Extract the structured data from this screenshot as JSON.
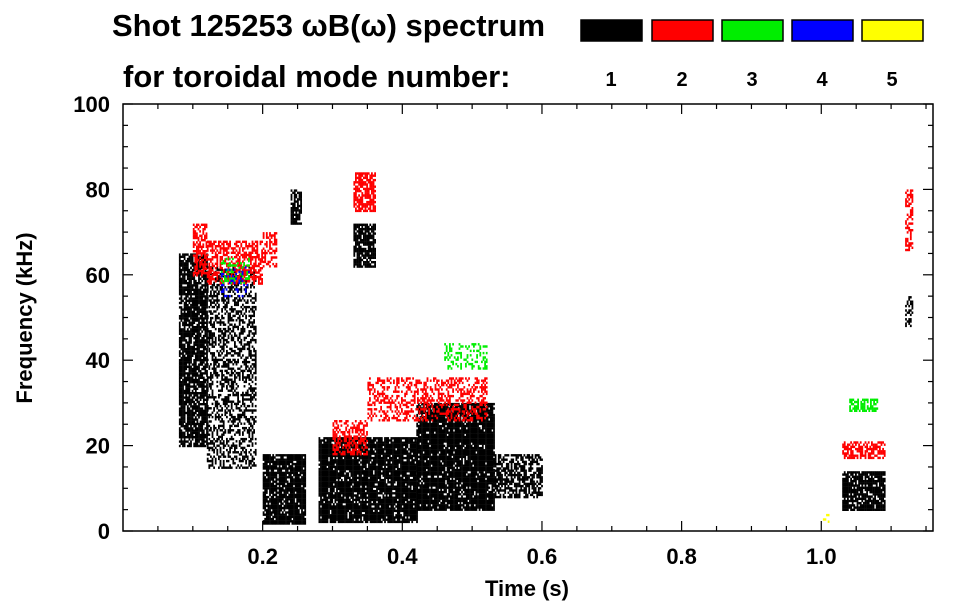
{
  "chart_data": {
    "type": "heatmap",
    "title_line1": "Shot 125253 ωB(ω) spectrum",
    "title_line2": "for toroidal mode number:",
    "xlabel": "Time (s)",
    "ylabel": "Frequency (kHz)",
    "xlim": [
      0.0,
      1.16
    ],
    "ylim": [
      0,
      100
    ],
    "x_ticks": [
      {
        "value": 0.2,
        "label": "0.2"
      },
      {
        "value": 0.4,
        "label": "0.4"
      },
      {
        "value": 0.6,
        "label": "0.6"
      },
      {
        "value": 0.8,
        "label": "0.8"
      },
      {
        "value": 1.0,
        "label": "1.0"
      }
    ],
    "y_ticks": [
      {
        "value": 0,
        "label": "0"
      },
      {
        "value": 20,
        "label": "20"
      },
      {
        "value": 40,
        "label": "40"
      },
      {
        "value": 60,
        "label": "60"
      },
      {
        "value": 80,
        "label": "80"
      },
      {
        "value": 100,
        "label": "100"
      }
    ],
    "legend": [
      {
        "mode": "1",
        "color": "#000000"
      },
      {
        "mode": "2",
        "color": "#ff0000"
      },
      {
        "mode": "3",
        "color": "#00ee00"
      },
      {
        "mode": "4",
        "color": "#0000ff"
      },
      {
        "mode": "5",
        "color": "#ffff00"
      }
    ],
    "regions": [
      {
        "mode": "1",
        "t": [
          0.08,
          0.12
        ],
        "f": [
          20,
          65
        ],
        "density": 0.8
      },
      {
        "mode": "1",
        "t": [
          0.12,
          0.19
        ],
        "f": [
          15,
          62
        ],
        "density": 0.45
      },
      {
        "mode": "1",
        "t": [
          0.2,
          0.26
        ],
        "f": [
          2,
          18
        ],
        "density": 0.9
      },
      {
        "mode": "1",
        "t": [
          0.24,
          0.255
        ],
        "f": [
          72,
          80
        ],
        "density": 0.7
      },
      {
        "mode": "1",
        "t": [
          0.28,
          0.42
        ],
        "f": [
          2,
          22
        ],
        "density": 0.9
      },
      {
        "mode": "1",
        "t": [
          0.33,
          0.36
        ],
        "f": [
          62,
          72
        ],
        "density": 0.8
      },
      {
        "mode": "1",
        "t": [
          0.42,
          0.53
        ],
        "f": [
          5,
          30
        ],
        "density": 0.9
      },
      {
        "mode": "1",
        "t": [
          0.53,
          0.6
        ],
        "f": [
          8,
          18
        ],
        "density": 0.6
      },
      {
        "mode": "1",
        "t": [
          1.03,
          1.09
        ],
        "f": [
          5,
          14
        ],
        "density": 0.85
      },
      {
        "mode": "1",
        "t": [
          1.12,
          1.13
        ],
        "f": [
          48,
          55
        ],
        "density": 0.5
      },
      {
        "mode": "2",
        "t": [
          0.1,
          0.12
        ],
        "f": [
          60,
          72
        ],
        "density": 0.6
      },
      {
        "mode": "2",
        "t": [
          0.12,
          0.2
        ],
        "f": [
          58,
          68
        ],
        "density": 0.55
      },
      {
        "mode": "2",
        "t": [
          0.2,
          0.22
        ],
        "f": [
          62,
          70
        ],
        "density": 0.5
      },
      {
        "mode": "2",
        "t": [
          0.33,
          0.36
        ],
        "f": [
          75,
          84
        ],
        "density": 0.7
      },
      {
        "mode": "2",
        "t": [
          0.3,
          0.35
        ],
        "f": [
          18,
          26
        ],
        "density": 0.5
      },
      {
        "mode": "2",
        "t": [
          0.35,
          0.52
        ],
        "f": [
          26,
          36
        ],
        "density": 0.4
      },
      {
        "mode": "2",
        "t": [
          1.03,
          1.09
        ],
        "f": [
          17,
          21
        ],
        "density": 0.6
      },
      {
        "mode": "2",
        "t": [
          1.12,
          1.13
        ],
        "f": [
          66,
          80
        ],
        "density": 0.5
      },
      {
        "mode": "3",
        "t": [
          0.14,
          0.18
        ],
        "f": [
          58,
          64
        ],
        "density": 0.3
      },
      {
        "mode": "3",
        "t": [
          0.46,
          0.52
        ],
        "f": [
          38,
          44
        ],
        "density": 0.3
      },
      {
        "mode": "3",
        "t": [
          1.04,
          1.08
        ],
        "f": [
          28,
          31
        ],
        "density": 0.6
      },
      {
        "mode": "4",
        "t": [
          0.14,
          0.18
        ],
        "f": [
          55,
          62
        ],
        "density": 0.15
      },
      {
        "mode": "5",
        "t": [
          1.0,
          1.01
        ],
        "f": [
          2,
          4
        ],
        "density": 0.5
      }
    ]
  }
}
